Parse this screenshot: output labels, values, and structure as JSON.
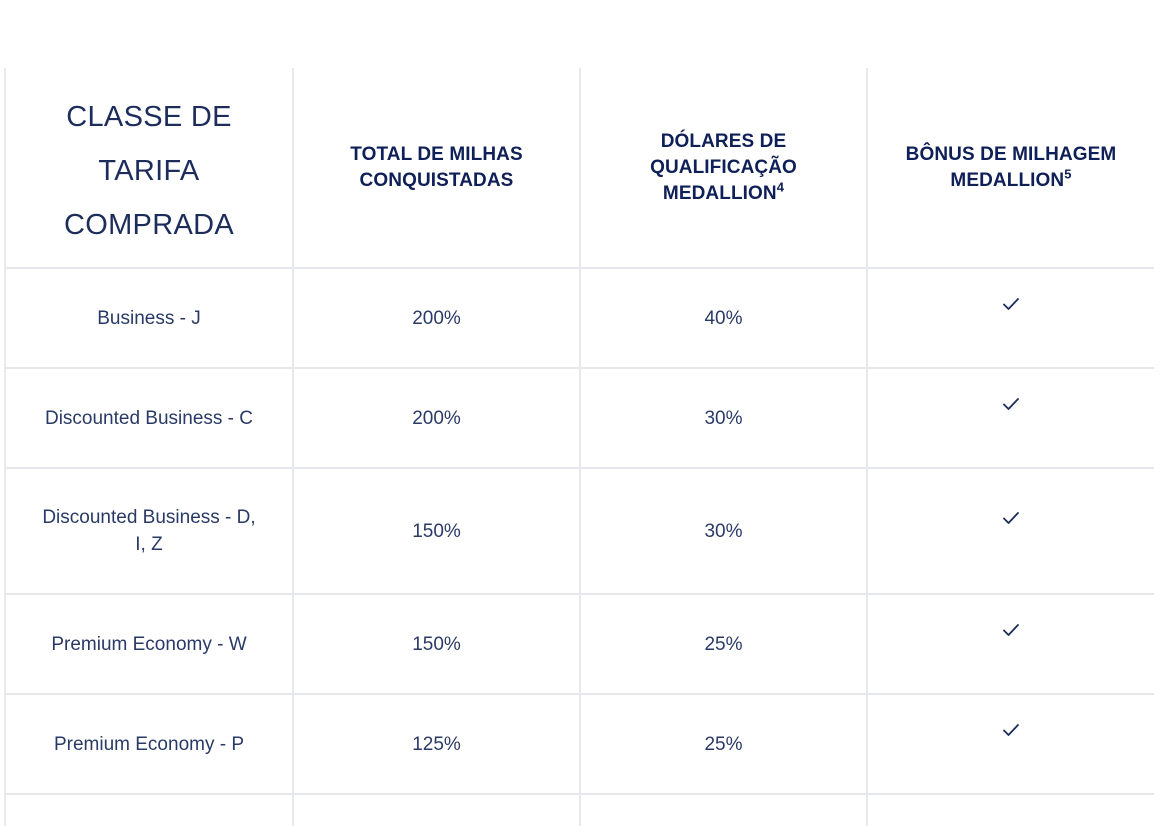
{
  "table": {
    "headers": {
      "fare_class": "CLASSE DE TARIFA COMPRADA",
      "total_miles": "TOTAL DE MILHAS CONQUISTADAS",
      "mqd": "DÓLARES DE QUALIFICAÇÃO MEDALLION",
      "mqd_sup": "4",
      "bonus": "BÔNUS DE MILHAGEM MEDALLION",
      "bonus_sup": "5"
    },
    "rows": [
      {
        "fare": "Business - J",
        "miles": "200%",
        "mqd": "40%",
        "bonus_icon": "checkmark-icon"
      },
      {
        "fare": "Discounted Business - C",
        "miles": "200%",
        "mqd": "30%",
        "bonus_icon": "checkmark-icon"
      },
      {
        "fare": "Discounted Business - D, I, Z",
        "miles": "150%",
        "mqd": "30%",
        "bonus_icon": "checkmark-icon"
      },
      {
        "fare": "Premium Economy - W",
        "miles": "150%",
        "mqd": "25%",
        "bonus_icon": "checkmark-icon"
      },
      {
        "fare": "Premium Economy - P",
        "miles": "125%",
        "mqd": "25%",
        "bonus_icon": "checkmark-icon"
      }
    ]
  },
  "colors": {
    "text": "#1d2d5b",
    "header_bold": "#0f1f57",
    "border": "#e6e8ee"
  }
}
